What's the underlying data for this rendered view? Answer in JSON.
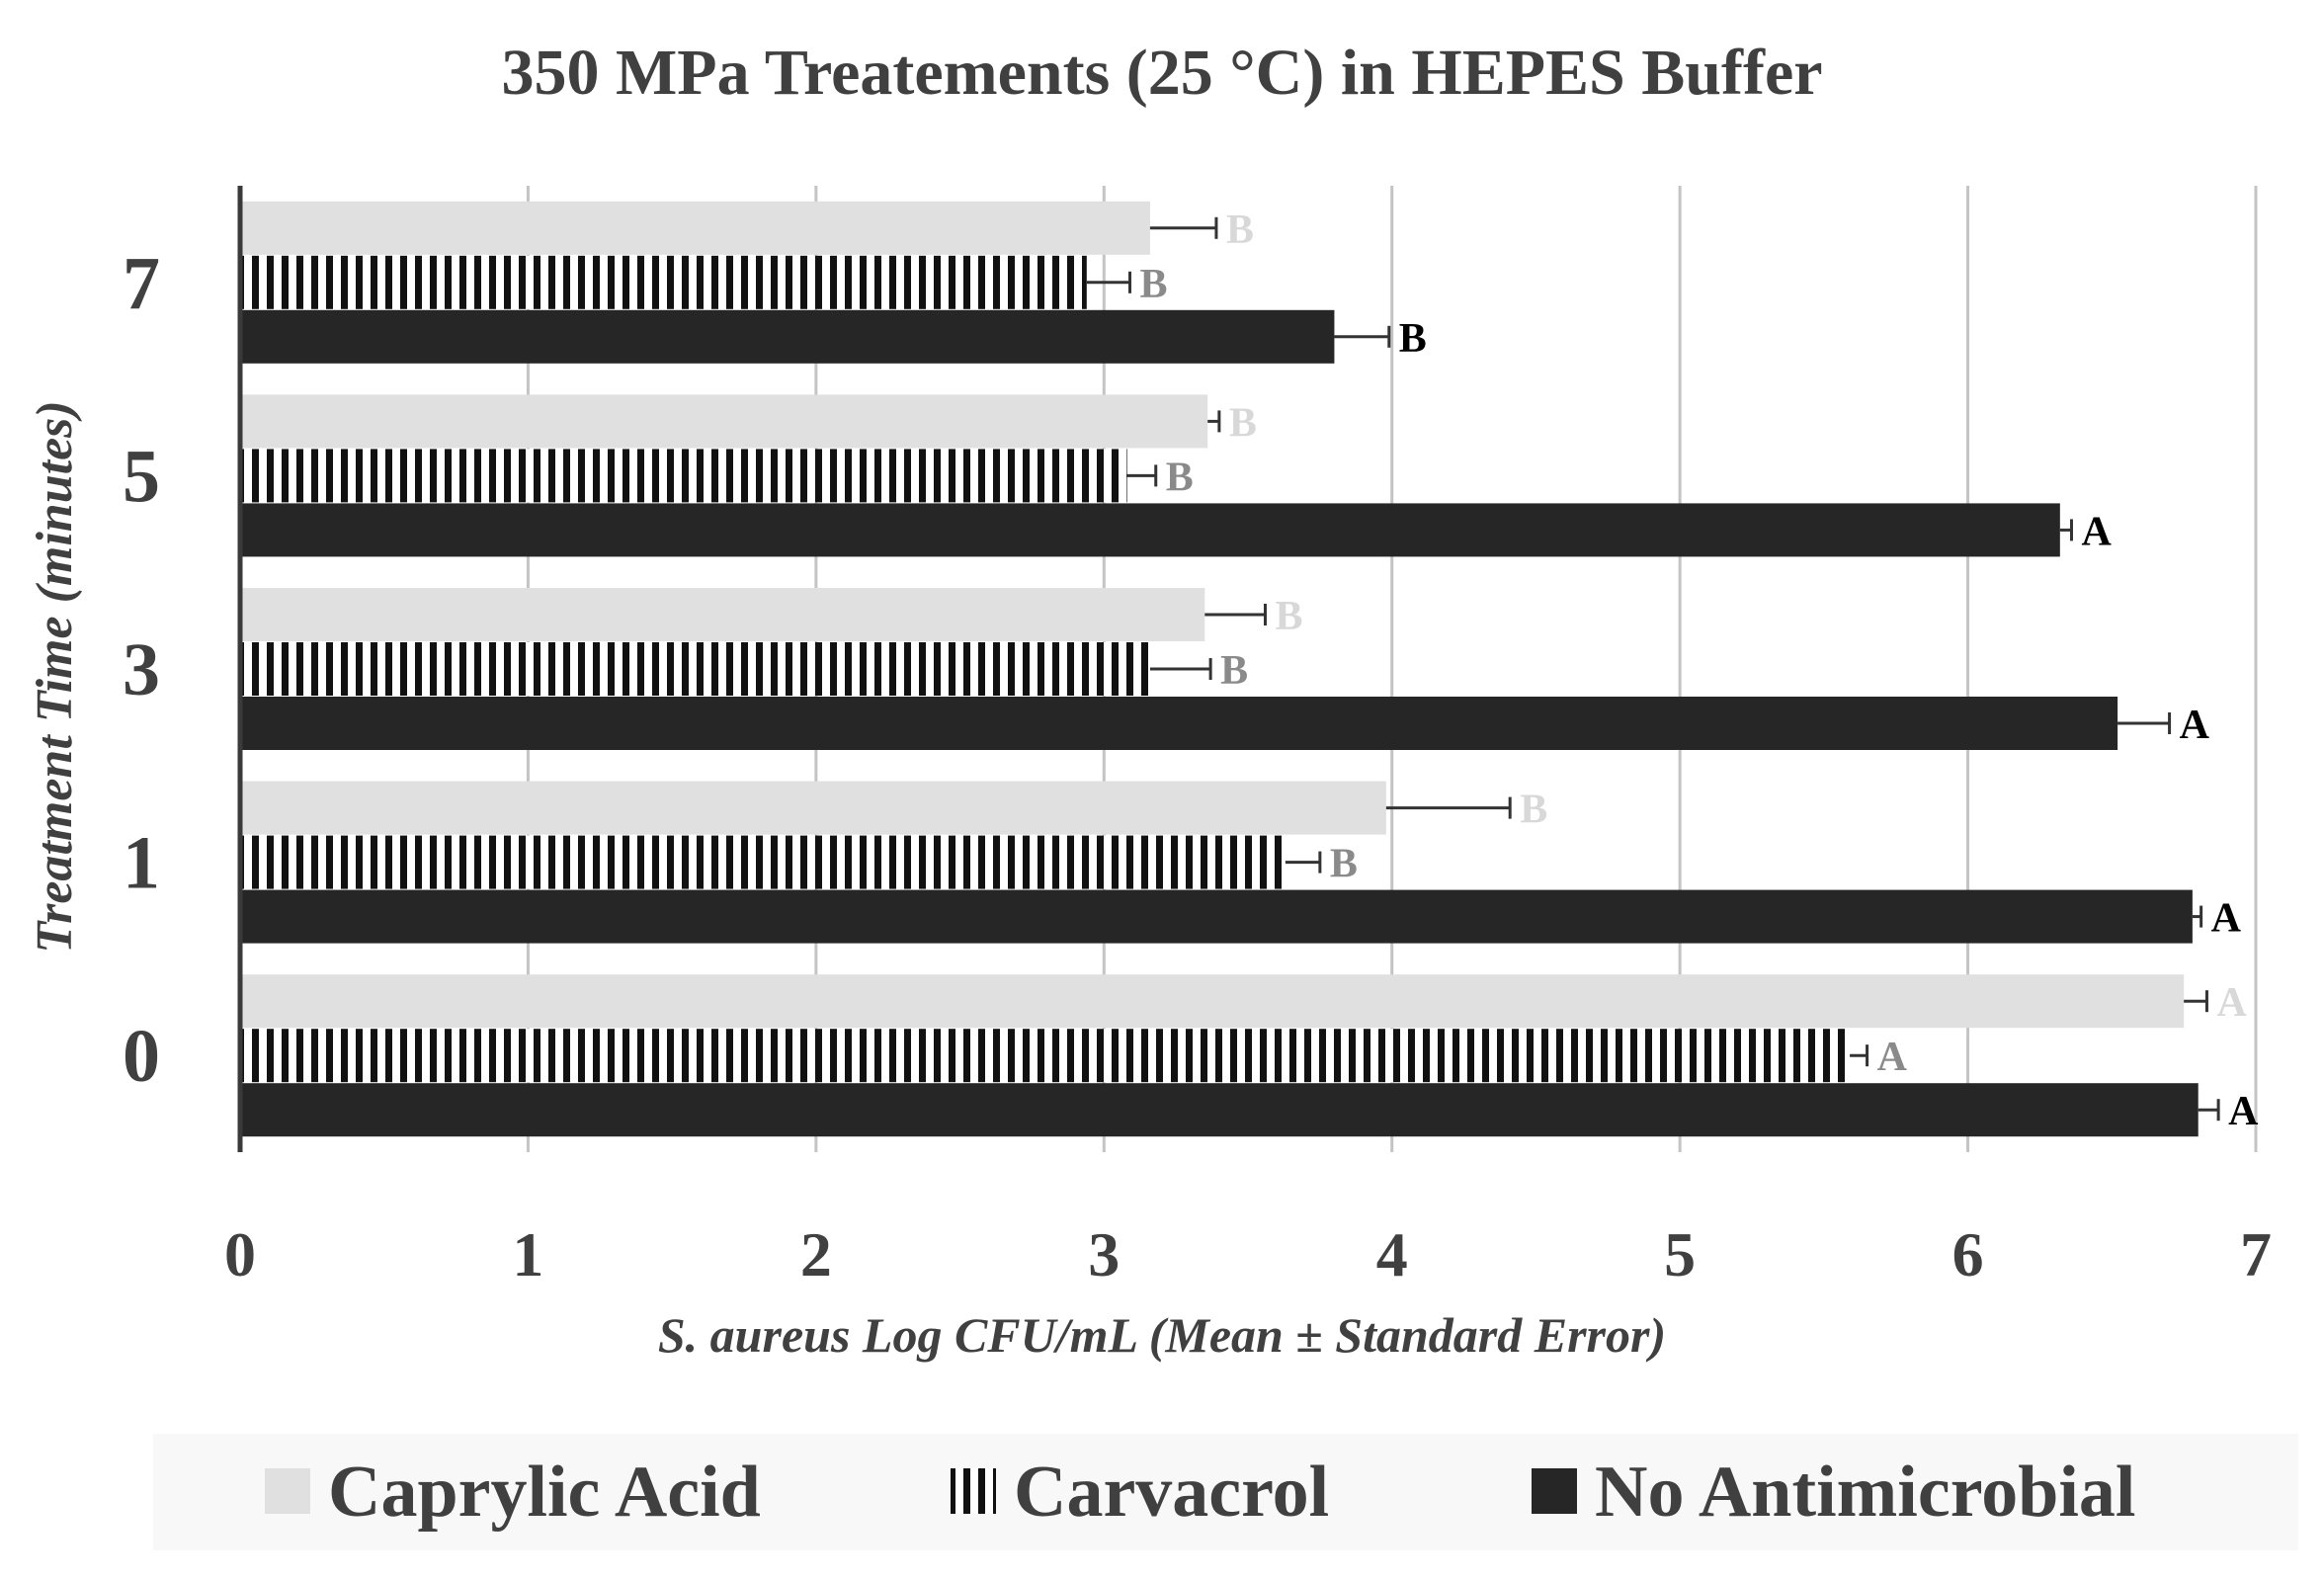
{
  "chart_data": {
    "type": "bar",
    "orientation": "horizontal",
    "title": "350 MPa Treatements  (25 °C) in HEPES Buffer",
    "xlabel": "S. aureus Log CFU/mL  (Mean ± Standard Error)",
    "ylabel": "Treatment Time (minutes)",
    "categories": [
      "0",
      "1",
      "3",
      "5",
      "7"
    ],
    "xlim": [
      0,
      7
    ],
    "x_ticks": [
      "0",
      "1",
      "2",
      "3",
      "4",
      "5",
      "6",
      "7"
    ],
    "grid": "vertical",
    "legend_position": "bottom",
    "series": [
      {
        "name": "Caprylic Acid",
        "color": "#e0e0e0",
        "label_color": "#d8d8d8",
        "pattern": "solid",
        "values": [
          6.75,
          3.98,
          3.35,
          3.36,
          3.16
        ],
        "errors": [
          0.08,
          0.43,
          0.21,
          0.04,
          0.23
        ],
        "letters": [
          "A",
          "B",
          "B",
          "B",
          "B"
        ]
      },
      {
        "name": "Carvacrol",
        "color": "#111111",
        "label_color": "#8a8a8a",
        "pattern": "vertical-stripes",
        "values": [
          5.59,
          3.63,
          3.16,
          3.08,
          2.94
        ],
        "errors": [
          0.06,
          0.12,
          0.21,
          0.1,
          0.15
        ],
        "letters": [
          "A",
          "B",
          "B",
          "B",
          "B"
        ]
      },
      {
        "name": "No Antimicrobial",
        "color": "#262626",
        "label_color": "#000000",
        "pattern": "solid",
        "values": [
          6.8,
          6.78,
          6.52,
          6.32,
          3.8
        ],
        "errors": [
          0.07,
          0.03,
          0.18,
          0.04,
          0.19
        ],
        "letters": [
          "A",
          "A",
          "A",
          "A",
          "B"
        ]
      }
    ]
  }
}
